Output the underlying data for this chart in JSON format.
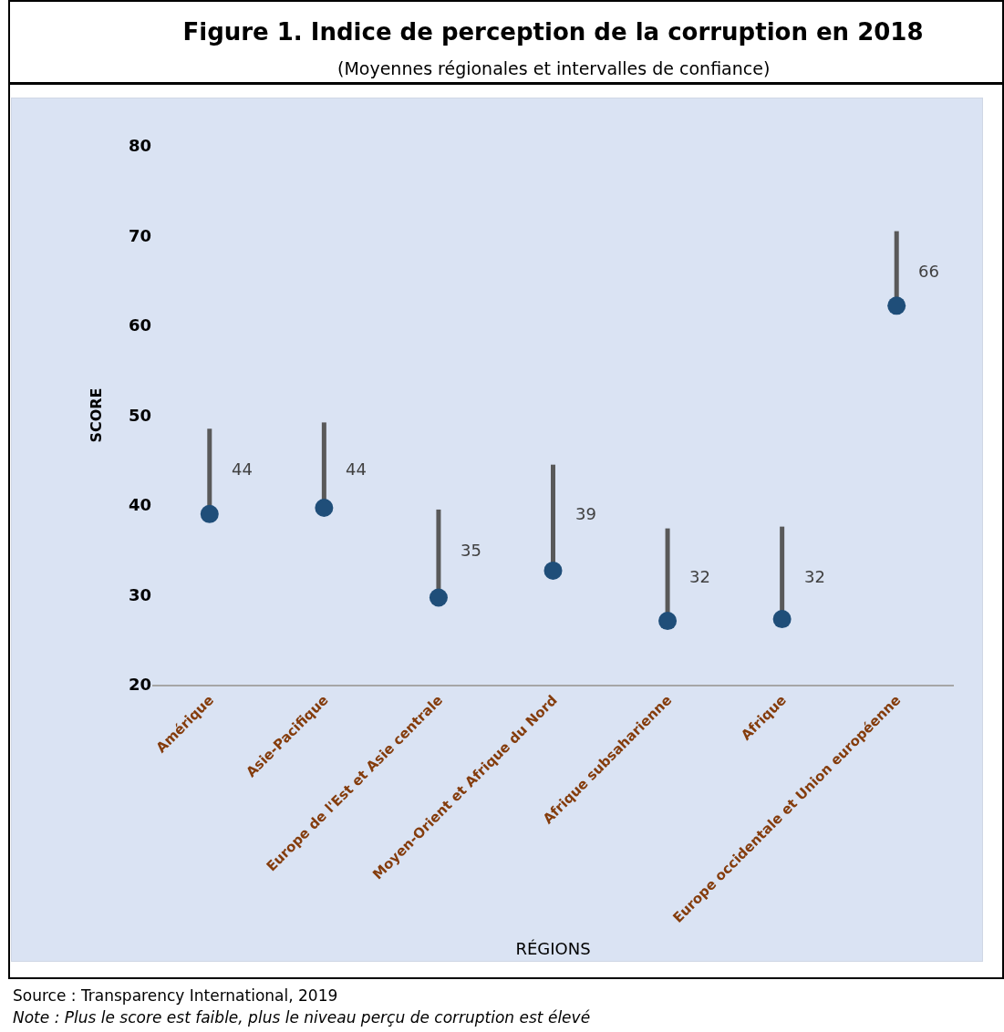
{
  "chart_data": {
    "type": "scatter",
    "title": "Figure 1. Indice de perception de la corruption en 2018",
    "subtitle": "(Moyennes régionales et intervalles de confiance)",
    "xlabel": "RÉGIONS",
    "ylabel": "SCORE",
    "categories": [
      "Amérique",
      "Asie-Pacifique",
      "Europe de l'Est et Asie centrale",
      "Moyen-Orient et Afrique du Nord",
      "Afrique subsaharienne",
      "Afrique",
      "Europe occidentale et Union européenne"
    ],
    "series": [
      {
        "color": "#1f4e79",
        "values": [
          39.0,
          39.7,
          29.7,
          32.7,
          27.1,
          27.3,
          62.2
        ],
        "errors": [
          [
            39.0,
            48.5
          ],
          [
            39.7,
            49.2
          ],
          [
            29.7,
            39.5
          ],
          [
            32.7,
            44.5
          ],
          [
            27.1,
            37.4
          ],
          [
            27.3,
            37.6
          ],
          [
            62.2,
            70.5
          ]
        ]
      }
    ],
    "ylim": [
      20,
      80
    ],
    "yticks": [
      20,
      30,
      40,
      50,
      60,
      70,
      80
    ],
    "grid": false,
    "marker": "circle",
    "annotations": [
      {
        "text": "44",
        "x": "Amérique",
        "y": 44
      },
      {
        "text": "44",
        "x": "Asie-Pacifique",
        "y": 44
      },
      {
        "text": "35",
        "x": "Europe de l'Est et Asie centrale",
        "y": 35
      },
      {
        "text": "39",
        "x": "Moyen-Orient et Afrique du Nord",
        "y": 39
      },
      {
        "text": "32",
        "x": "Afrique subsaharienne",
        "y": 32
      },
      {
        "text": "32",
        "x": "Afrique",
        "y": 32
      },
      {
        "text": "66",
        "x": "Europe occidentale et Union européenne",
        "y": 66
      },
      "Source : Transparency International, 2019",
      "Note : Plus le score est faible, plus le niveau perçu de corruption est élevé"
    ]
  }
}
